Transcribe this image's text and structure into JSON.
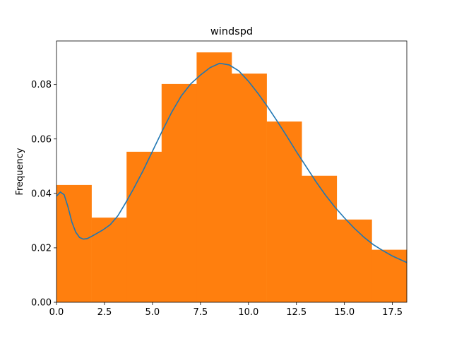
{
  "chart_data": {
    "type": "bar",
    "title": "windspd",
    "xlabel": "",
    "ylabel": "Frequency",
    "xlim": [
      0,
      18.25
    ],
    "ylim": [
      0,
      0.096
    ],
    "xticks": [
      0.0,
      2.5,
      5.0,
      7.5,
      10.0,
      12.5,
      15.0,
      17.5
    ],
    "xtick_labels": [
      "0.0",
      "2.5",
      "5.0",
      "7.5",
      "10.0",
      "12.5",
      "15.0",
      "17.5"
    ],
    "yticks": [
      0.0,
      0.02,
      0.04,
      0.06,
      0.08
    ],
    "ytick_labels": [
      "0.00",
      "0.02",
      "0.04",
      "0.06",
      "0.08"
    ],
    "grid": false,
    "histogram": {
      "color": "#ff7f0e",
      "bin_edges": [
        0.0,
        1.825,
        3.65,
        5.475,
        7.3,
        9.125,
        10.95,
        12.775,
        14.6,
        16.425,
        18.25
      ],
      "values": [
        0.0431,
        0.0311,
        0.0553,
        0.0802,
        0.0918,
        0.084,
        0.0664,
        0.0465,
        0.0304,
        0.0193
      ]
    },
    "density_curve": {
      "color": "#1f77b4",
      "x": [
        0.0,
        0.2,
        0.4,
        0.6,
        0.8,
        1.0,
        1.2,
        1.4,
        1.6,
        1.8,
        2.0,
        2.4,
        2.8,
        3.2,
        3.6,
        4.0,
        4.5,
        5.0,
        5.5,
        6.0,
        6.5,
        7.0,
        7.5,
        8.0,
        8.5,
        9.0,
        9.5,
        10.0,
        10.5,
        11.0,
        11.5,
        12.0,
        12.5,
        13.0,
        13.5,
        14.0,
        14.5,
        15.0,
        15.5,
        16.0,
        16.5,
        17.0,
        17.5,
        18.25
      ],
      "y": [
        0.039,
        0.0405,
        0.0395,
        0.035,
        0.0295,
        0.0258,
        0.0238,
        0.0232,
        0.0234,
        0.0241,
        0.0249,
        0.0265,
        0.0285,
        0.0318,
        0.0365,
        0.0415,
        0.0482,
        0.0555,
        0.0628,
        0.0698,
        0.0758,
        0.0803,
        0.0835,
        0.0862,
        0.0878,
        0.0872,
        0.085,
        0.0812,
        0.0767,
        0.0718,
        0.0665,
        0.061,
        0.0553,
        0.0499,
        0.0445,
        0.0395,
        0.035,
        0.031,
        0.0273,
        0.024,
        0.0212,
        0.019,
        0.017,
        0.0146
      ]
    }
  }
}
